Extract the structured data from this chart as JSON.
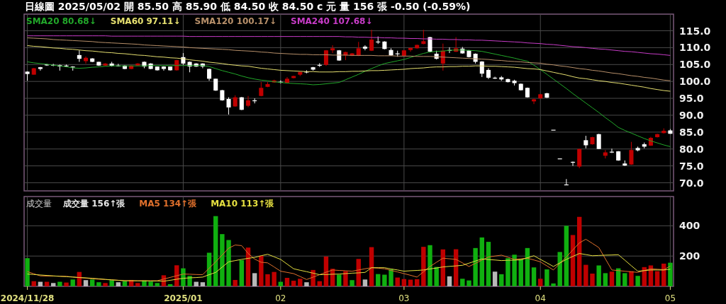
{
  "chart_data": [
    {
      "type": "candlestick",
      "title": "日線圖 2025/05/02 開 85.50 高 85.90 低 84.50 收 84.50 c 元 量 156 張 -0.50 (-0.59%)",
      "tick_labels": "y",
      "grid": true,
      "legend": "top left",
      "categories": [
        "2024/11/28",
        null,
        null,
        null,
        null,
        null,
        null,
        null,
        null,
        null,
        null,
        null,
        null,
        null,
        null,
        null,
        null,
        null,
        null,
        null,
        null,
        null,
        null,
        null,
        "2025/01",
        null,
        null,
        null,
        null,
        null,
        null,
        null,
        null,
        null,
        null,
        null,
        null,
        null,
        null,
        "02",
        null,
        null,
        null,
        null,
        null,
        null,
        null,
        null,
        null,
        null,
        null,
        null,
        null,
        null,
        null,
        null,
        null,
        null,
        "03",
        null,
        null,
        null,
        null,
        null,
        null,
        null,
        null,
        null,
        null,
        null,
        null,
        null,
        null,
        null,
        null,
        null,
        null,
        null,
        null,
        "04",
        null,
        null,
        null,
        null,
        null,
        null,
        null,
        null,
        null,
        null,
        null,
        null,
        null,
        null,
        null,
        null,
        null,
        null,
        null,
        "05"
      ],
      "ylim": [
        67.6,
        119.5
      ],
      "yticks": [
        {
          "value": 70,
          "label": "70.0"
        },
        {
          "value": 75,
          "label": "75.0"
        },
        {
          "value": 80,
          "label": "80.0"
        },
        {
          "value": 85,
          "label": "85.0"
        },
        {
          "value": 90,
          "label": "90.0"
        },
        {
          "value": 95,
          "label": "95.0"
        },
        {
          "value": 100,
          "label": "100.0"
        },
        {
          "value": 105,
          "label": "105.0"
        },
        {
          "value": 110,
          "label": "110.0"
        },
        {
          "value": 115,
          "label": "115.0"
        }
      ],
      "ohlc": [
        [
          102.9,
          103.0,
          100.2,
          102.2
        ],
        [
          102.0,
          104.0,
          102.0,
          103.9
        ],
        [
          104.2,
          104.3,
          103.2,
          103.7
        ],
        [
          105.0,
          105.2,
          104.6,
          104.9
        ],
        [
          104.9,
          105.2,
          104.5,
          104.9
        ],
        [
          104.8,
          105.0,
          103.2,
          104.4
        ],
        [
          104.7,
          105.0,
          104.3,
          104.7
        ],
        [
          104.4,
          104.5,
          103.2,
          104.3
        ],
        [
          107.8,
          109.2,
          105.8,
          106.7
        ],
        [
          106.0,
          107.4,
          105.3,
          107.0
        ],
        [
          106.8,
          106.9,
          105.7,
          105.8
        ],
        [
          105.8,
          105.8,
          104.6,
          104.7
        ],
        [
          104.7,
          105.4,
          104.6,
          105.3
        ],
        [
          105.3,
          105.8,
          104.4,
          104.6
        ],
        [
          104.7,
          105.2,
          104.4,
          104.7
        ],
        [
          104.7,
          104.8,
          103.6,
          103.7
        ],
        [
          103.7,
          104.8,
          103.6,
          104.7
        ],
        [
          104.7,
          105.4,
          104.6,
          105.3
        ],
        [
          105.8,
          105.9,
          103.9,
          104.4
        ],
        [
          105.3,
          105.4,
          103.6,
          103.7
        ],
        [
          104.4,
          104.4,
          103.2,
          103.3
        ],
        [
          104.4,
          104.5,
          103.2,
          103.7
        ],
        [
          104.4,
          104.4,
          103.2,
          103.3
        ],
        [
          103.3,
          106.4,
          103.2,
          106.3
        ],
        [
          107.2,
          108.4,
          104.9,
          105.3
        ],
        [
          105.8,
          105.9,
          102.7,
          104.4
        ],
        [
          105.3,
          105.4,
          104.3,
          104.4
        ],
        [
          105.3,
          105.4,
          103.9,
          104.4
        ],
        [
          103.7,
          103.8,
          100.2,
          100.8
        ],
        [
          100.8,
          100.8,
          97.2,
          97.3
        ],
        [
          97.4,
          97.5,
          94.3,
          94.4
        ],
        [
          94.8,
          95.3,
          90.2,
          92.3
        ],
        [
          92.6,
          95.9,
          92.5,
          95.3
        ],
        [
          95.3,
          95.4,
          91.5,
          91.6
        ],
        [
          92.8,
          95.7,
          92.4,
          94.4
        ],
        [
          94.4,
          95.0,
          93.5,
          94.3
        ],
        [
          95.7,
          99.8,
          95.6,
          98.1
        ],
        [
          98.4,
          99.8,
          98.3,
          99.2
        ],
        [
          99.7,
          100.5,
          99.6,
          100.3
        ],
        [
          99.9,
          100.3,
          99.4,
          99.9
        ],
        [
          99.6,
          101.3,
          99.5,
          100.8
        ],
        [
          101.0,
          101.7,
          100.9,
          101.6
        ],
        [
          102.0,
          102.9,
          101.6,
          102.8
        ],
        [
          102.9,
          103.3,
          102.4,
          102.8
        ],
        [
          104.2,
          104.3,
          103.2,
          103.5
        ],
        [
          104.9,
          105.4,
          104.3,
          104.8
        ],
        [
          104.9,
          109.3,
          104.6,
          109.2
        ],
        [
          109.2,
          110.7,
          108.4,
          109.8
        ],
        [
          109.2,
          109.3,
          106.1,
          106.2
        ],
        [
          107.7,
          108.8,
          106.3,
          108.7
        ],
        [
          107.6,
          108.4,
          107.5,
          108.3
        ],
        [
          107.6,
          111.7,
          107.5,
          109.8
        ],
        [
          110.3,
          110.7,
          109.2,
          109.7
        ],
        [
          109.1,
          115.3,
          109.0,
          112.4
        ],
        [
          111.8,
          113.3,
          111.1,
          111.8
        ],
        [
          111.8,
          111.9,
          109.5,
          109.6
        ],
        [
          109.3,
          109.8,
          107.6,
          107.7
        ],
        [
          108.3,
          109.1,
          107.3,
          108.2
        ],
        [
          107.6,
          109.3,
          107.5,
          109.2
        ],
        [
          109.3,
          110.0,
          108.8,
          109.9
        ],
        [
          109.8,
          110.9,
          109.7,
          110.8
        ],
        [
          111.1,
          115.3,
          111.0,
          111.9
        ],
        [
          113.1,
          113.2,
          108.6,
          108.8
        ],
        [
          108.2,
          109.1,
          106.5,
          106.7
        ],
        [
          105.3,
          111.2,
          103.2,
          109.1
        ],
        [
          109.3,
          110.1,
          108.4,
          109.3
        ],
        [
          108.8,
          113.1,
          108.7,
          109.8
        ],
        [
          109.7,
          110.2,
          108.2,
          108.3
        ],
        [
          109.2,
          109.3,
          107.1,
          107.2
        ],
        [
          108.2,
          108.3,
          105.3,
          105.8
        ],
        [
          105.9,
          106.0,
          101.3,
          102.3
        ],
        [
          103.4,
          103.9,
          100.7,
          101.1
        ],
        [
          101.1,
          101.4,
          100.7,
          101.0
        ],
        [
          101.2,
          101.6,
          100.2,
          100.6
        ],
        [
          100.7,
          100.8,
          99.7,
          99.8
        ],
        [
          100.2,
          100.5,
          98.8,
          99.5
        ],
        [
          99.3,
          99.4,
          97.3,
          97.4
        ],
        [
          98.1,
          98.2,
          95.2,
          95.3
        ],
        [
          94.1,
          94.9,
          93.3,
          94.7
        ],
        [
          95.0,
          96.3,
          94.9,
          96.2
        ],
        [
          96.5,
          96.6,
          95.1,
          95.2
        ],
        [
          85.7,
          85.7,
          85.7,
          85.7
        ],
        [
          77.2,
          77.2,
          77.2,
          77.2
        ],
        [
          69.5,
          71.1,
          69.5,
          69.5
        ],
        [
          76.2,
          76.3,
          75.0,
          76.2
        ],
        [
          74.8,
          80.1,
          74.3,
          80.0
        ],
        [
          82.6,
          83.9,
          80.2,
          81.1
        ],
        [
          81.4,
          83.6,
          81.3,
          83.5
        ],
        [
          84.4,
          84.5,
          80.0,
          80.0
        ],
        [
          78.0,
          79.7,
          77.2,
          79.0
        ],
        [
          79.2,
          80.1,
          78.8,
          79.1
        ],
        [
          79.3,
          79.4,
          76.5,
          76.6
        ],
        [
          75.7,
          76.6,
          75.0,
          75.1
        ],
        [
          75.4,
          82.1,
          75.3,
          79.7
        ],
        [
          80.3,
          80.7,
          79.3,
          79.6
        ],
        [
          81.4,
          81.9,
          80.2,
          80.7
        ],
        [
          81.0,
          83.6,
          80.9,
          83.3
        ],
        [
          83.5,
          84.5,
          83.4,
          84.4
        ],
        [
          84.7,
          86.1,
          84.6,
          85.4
        ],
        [
          85.5,
          85.9,
          84.5,
          84.5
        ]
      ],
      "colors": [
        "#ffffff",
        "#c00000",
        "#ffffff",
        "#ffffff",
        "#ffffff",
        "#ffffff",
        "#ffffff",
        "#ffffff",
        "#ffffff",
        "#c00000",
        "#ffffff",
        "#ffffff",
        "#c00000",
        "#ffffff",
        "#ffffff",
        "#ffffff",
        "#c00000",
        "#c00000",
        "#ffffff",
        "#ffffff",
        "#ffffff",
        "#ffffff",
        "#ffffff",
        "#c00000",
        "#ffffff",
        "#ffffff",
        "#ffffff",
        "#ffffff",
        "#ffffff",
        "#ffffff",
        "#ffffff",
        "#ffffff",
        "#c00000",
        "#ffffff",
        "#c00000",
        "#ffffff",
        "#c00000",
        "#c00000",
        "#c00000",
        "#ffffff",
        "#c00000",
        "#c00000",
        "#c00000",
        "#ffffff",
        "#ffffff",
        "#ffffff",
        "#c00000",
        "#c00000",
        "#ffffff",
        "#c00000",
        "#c00000",
        "#c00000",
        "#ffffff",
        "#c00000",
        "#ffffff",
        "#ffffff",
        "#ffffff",
        "#ffffff",
        "#c00000",
        "#c00000",
        "#c00000",
        "#c00000",
        "#ffffff",
        "#ffffff",
        "#c00000",
        "#ffffff",
        "#c00000",
        "#ffffff",
        "#ffffff",
        "#ffffff",
        "#ffffff",
        "#ffffff",
        "#ffffff",
        "#ffffff",
        "#ffffff",
        "#ffffff",
        "#ffffff",
        "#ffffff",
        "#c00000",
        "#c00000",
        "#ffffff",
        "#ffffff",
        "#ffffff",
        "#ffffff",
        "#ffffff",
        "#c00000",
        "#ffffff",
        "#c00000",
        "#ffffff",
        "#c00000",
        "#ffffff",
        "#ffffff",
        "#ffffff",
        "#c00000",
        "#ffffff",
        "#ffffff",
        "#c00000",
        "#c00000",
        "#c00000",
        "#ffffff"
      ],
      "series": [
        {
          "name": "SMA20 80.68↓",
          "type": "line",
          "color": "#22a82a",
          "values": [
            105.8,
            105.5,
            105.3,
            105.1,
            104.8,
            104.6,
            104.3,
            104.0,
            103.9,
            104.0,
            104.2,
            104.3,
            104.5,
            104.6,
            104.6,
            104.6,
            104.6,
            104.6,
            104.6,
            104.7,
            104.7,
            104.7,
            104.7,
            104.7,
            104.7,
            104.7,
            104.7,
            104.7,
            104.4,
            103.8,
            103.2,
            102.7,
            102.2,
            101.6,
            101.1,
            100.7,
            100.4,
            100.2,
            99.9,
            99.7,
            99.5,
            99.4,
            99.3,
            99.2,
            99.0,
            99.1,
            99.3,
            99.5,
            99.7,
            100.5,
            101.3,
            102.1,
            103.0,
            103.8,
            104.6,
            105.3,
            105.7,
            106.1,
            106.5,
            107.1,
            107.7,
            108.3,
            108.7,
            108.9,
            109.0,
            109.2,
            109.3,
            109.3,
            109.2,
            109.1,
            108.9,
            108.5,
            108.1,
            107.7,
            107.3,
            106.9,
            106.4,
            106.0,
            104.8,
            103.5,
            102.1,
            100.7,
            99.3,
            97.9,
            96.4,
            95.0,
            93.6,
            92.2,
            90.8,
            89.3,
            87.9,
            86.4,
            85.5,
            84.7,
            83.9,
            83.1,
            82.4,
            81.8,
            81.2,
            80.7
          ]
        },
        {
          "name": "SMA60 97.11↓",
          "type": "line",
          "color": "#e6e070",
          "values": [
            110.6,
            110.4,
            110.3,
            110.1,
            109.9,
            109.8,
            109.6,
            109.5,
            109.3,
            109.1,
            109.0,
            108.8,
            108.6,
            108.5,
            108.3,
            108.2,
            108.0,
            107.8,
            107.7,
            107.5,
            107.3,
            107.2,
            107.0,
            106.9,
            106.7,
            106.4,
            106.2,
            106.0,
            105.7,
            105.5,
            105.3,
            105.0,
            104.8,
            104.6,
            104.5,
            104.2,
            103.9,
            103.7,
            103.5,
            103.3,
            103.2,
            103.1,
            103.0,
            102.9,
            102.9,
            102.8,
            102.8,
            102.8,
            102.9,
            102.9,
            103.0,
            103.0,
            103.1,
            103.2,
            103.2,
            103.3,
            103.4,
            103.5,
            103.6,
            103.8,
            103.9,
            104.0,
            104.2,
            104.3,
            104.3,
            104.4,
            104.4,
            104.5,
            104.5,
            104.6,
            104.6,
            104.5,
            104.5,
            104.4,
            104.3,
            104.2,
            104.0,
            103.8,
            103.7,
            103.5,
            103.1,
            102.7,
            102.3,
            101.9,
            101.4,
            101.0,
            100.8,
            100.5,
            100.2,
            100.0,
            99.7,
            99.5,
            99.2,
            98.9,
            98.6,
            98.3,
            97.9,
            97.6,
            97.3,
            97.1
          ]
        },
        {
          "name": "SMA120 100.17↓",
          "type": "line",
          "color": "#b8906a",
          "values": [
            112.9,
            112.8,
            112.7,
            112.6,
            112.4,
            112.3,
            112.2,
            112.1,
            112.0,
            111.9,
            111.8,
            111.6,
            111.5,
            111.4,
            111.3,
            111.2,
            111.1,
            111.0,
            110.8,
            110.7,
            110.6,
            110.5,
            110.4,
            110.3,
            110.2,
            110.0,
            109.9,
            109.8,
            109.7,
            109.6,
            109.5,
            109.4,
            109.2,
            109.1,
            109.0,
            108.9,
            108.7,
            108.6,
            108.4,
            108.3,
            108.2,
            108.1,
            108.0,
            108.0,
            107.9,
            107.9,
            107.9,
            107.8,
            107.8,
            107.8,
            107.7,
            107.7,
            107.7,
            107.7,
            107.6,
            107.6,
            107.6,
            107.5,
            107.5,
            107.5,
            107.4,
            107.4,
            107.4,
            107.3,
            107.2,
            107.1,
            107.0,
            106.9,
            106.8,
            106.7,
            106.6,
            106.5,
            106.3,
            106.2,
            106.0,
            105.9,
            105.8,
            105.6,
            105.5,
            105.4,
            105.1,
            104.9,
            104.6,
            104.4,
            104.1,
            103.8,
            103.6,
            103.3,
            103.1,
            102.8,
            102.5,
            102.3,
            102.0,
            101.7,
            101.5,
            101.2,
            101.0,
            100.7,
            100.4,
            100.2
          ]
        },
        {
          "name": "SMA240 107.68↓",
          "type": "line",
          "color": "#c83cc8",
          "values": [
            113.5,
            113.5,
            113.5,
            113.5,
            113.5,
            113.5,
            113.5,
            113.5,
            113.5,
            113.5,
            113.5,
            113.5,
            113.5,
            113.4,
            113.4,
            113.4,
            113.4,
            113.4,
            113.4,
            113.4,
            113.4,
            113.4,
            113.4,
            113.4,
            113.4,
            113.3,
            113.3,
            113.3,
            113.3,
            113.3,
            113.3,
            113.3,
            113.3,
            113.3,
            113.3,
            113.3,
            113.3,
            113.3,
            113.3,
            113.3,
            113.3,
            113.3,
            113.3,
            113.3,
            113.3,
            113.3,
            113.3,
            113.3,
            113.3,
            113.2,
            113.2,
            113.1,
            113.1,
            113.0,
            113.0,
            112.9,
            112.9,
            112.8,
            112.8,
            112.7,
            112.7,
            112.6,
            112.6,
            112.5,
            112.5,
            112.4,
            112.4,
            112.3,
            112.3,
            112.2,
            112.2,
            112.1,
            112.0,
            111.9,
            111.8,
            111.7,
            111.6,
            111.4,
            111.3,
            111.2,
            111.0,
            110.9,
            110.7,
            110.5,
            110.3,
            110.2,
            110.0,
            109.8,
            109.6,
            109.5,
            109.3,
            109.1,
            108.9,
            108.8,
            108.6,
            108.4,
            108.2,
            108.1,
            107.9,
            107.7
          ]
        }
      ]
    },
    {
      "type": "bar",
      "title": "成交量",
      "annotations": [
        "成交量 156↑張"
      ],
      "grid": true,
      "legend": "top left",
      "categories": [
        "2024/11/28",
        null,
        null,
        null,
        null,
        null,
        null,
        null,
        null,
        null,
        null,
        null,
        null,
        null,
        null,
        null,
        null,
        null,
        null,
        null,
        null,
        null,
        null,
        null,
        "2025/01",
        null,
        null,
        null,
        null,
        null,
        null,
        null,
        null,
        null,
        null,
        null,
        null,
        null,
        null,
        "02",
        null,
        null,
        null,
        null,
        null,
        null,
        null,
        null,
        null,
        null,
        null,
        null,
        null,
        null,
        null,
        null,
        null,
        null,
        "03",
        null,
        null,
        null,
        null,
        null,
        null,
        null,
        null,
        null,
        null,
        null,
        null,
        null,
        null,
        null,
        null,
        null,
        null,
        null,
        null,
        "04",
        null,
        null,
        null,
        null,
        null,
        null,
        null,
        null,
        null,
        null,
        null,
        null,
        null,
        null,
        null,
        null,
        null,
        null,
        null,
        "05"
      ],
      "ylim": [
        0,
        584
      ],
      "yticks": [
        200,
        400
      ],
      "series": [
        {
          "type": "bar",
          "values": [
            186,
            34,
            30,
            30,
            22,
            30,
            25,
            45,
            95,
            41,
            45,
            27,
            22,
            41,
            27,
            34,
            42,
            22,
            39,
            31,
            22,
            73,
            14,
            139,
            119,
            69,
            30,
            27,
            222,
            464,
            345,
            306,
            42,
            173,
            256,
            87,
            202,
            80,
            95,
            30,
            56,
            37,
            50,
            27,
            108,
            34,
            197,
            116,
            77,
            100,
            41,
            181,
            45,
            259,
            81,
            77,
            112,
            58,
            48,
            44,
            47,
            261,
            272,
            128,
            244,
            66,
            245,
            50,
            39,
            253,
            323,
            294,
            97,
            80,
            186,
            209,
            181,
            253,
            125,
            50,
            112,
            19,
            227,
            400,
            339,
            459,
            142,
            84,
            138,
            87,
            97,
            119,
            87,
            100,
            69,
            127,
            138,
            100,
            150,
            156
          ],
          "colors": [
            "#10b010",
            "#c00000",
            "#b8b8b8",
            "#c00000",
            "#b8b8b8",
            "#10b010",
            "#c00000",
            "#10b010",
            "#c00000",
            "#b8b8b8",
            "#10b010",
            "#10b010",
            "#c00000",
            "#10b010",
            "#b8b8b8",
            "#10b010",
            "#c00000",
            "#c00000",
            "#10b010",
            "#10b010",
            "#10b010",
            "#c00000",
            "#10b010",
            "#c00000",
            "#10b010",
            "#10b010",
            "#b8b8b8",
            "#b8b8b8",
            "#10b010",
            "#10b010",
            "#10b010",
            "#10b010",
            "#c00000",
            "#10b010",
            "#c00000",
            "#b8b8b8",
            "#c00000",
            "#c00000",
            "#c00000",
            "#10b010",
            "#c00000",
            "#c00000",
            "#c00000",
            "#b8b8b8",
            "#c00000",
            "#c00000",
            "#c00000",
            "#c00000",
            "#10b010",
            "#c00000",
            "#10b010",
            "#c00000",
            "#b8b8b8",
            "#c00000",
            "#10b010",
            "#10b010",
            "#10b010",
            "#c00000",
            "#c00000",
            "#c00000",
            "#c00000",
            "#c00000",
            "#10b010",
            "#10b010",
            "#c00000",
            "#b8b8b8",
            "#c00000",
            "#10b010",
            "#10b010",
            "#10b010",
            "#10b010",
            "#10b010",
            "#b8b8b8",
            "#10b010",
            "#10b010",
            "#10b010",
            "#10b010",
            "#10b010",
            "#10b010",
            "#c00000",
            "#10b010",
            "#10b010",
            "#10b010",
            "#10b010",
            "#c00000",
            "#c00000",
            "#c00000",
            "#c00000",
            "#10b010",
            "#10b010",
            "#c00000",
            "#10b010",
            "#10b010",
            "#c00000",
            "#10b010",
            "#c00000",
            "#c00000",
            "#c00000",
            "#c00000",
            "#10b010"
          ]
        },
        {
          "name": "MA5 134↑張",
          "type": "line",
          "color": "#e0702c",
          "values": [
            97,
            83,
            69,
            68,
            68,
            67,
            66,
            62,
            58,
            54,
            50,
            47,
            45,
            42,
            40,
            37,
            37,
            37,
            37,
            37,
            37,
            48,
            59,
            70,
            81,
            80,
            78,
            77,
            120,
            162,
            207,
            252,
            273,
            269,
            217,
            180,
            159,
            155,
            128,
            100,
            92,
            84,
            65,
            45,
            61,
            77,
            93,
            108,
            105,
            103,
            100,
            108,
            116,
            123,
            120,
            116,
            105,
            95,
            84,
            73,
            61,
            96,
            131,
            159,
            186,
            182,
            178,
            155,
            131,
            152,
            173,
            194,
            200,
            206,
            192,
            178,
            182,
            186,
            174,
            162,
            135,
            108,
            151,
            194,
            241,
            287,
            311,
            284,
            256,
            182,
            108,
            104,
            100,
            96,
            92,
            104,
            116,
            113,
            110,
            134
          ]
        },
        {
          "name": "MA10 113↑張",
          "type": "line",
          "color": "#e6e040",
          "values": [
            81,
            78,
            75,
            72,
            69,
            66,
            64,
            61,
            58,
            56,
            53,
            50,
            46,
            43,
            40,
            37,
            37,
            36,
            36,
            35,
            35,
            34,
            40,
            47,
            53,
            56,
            58,
            61,
            77,
            92,
            127,
            162,
            170,
            178,
            185,
            191,
            202,
            212,
            195,
            178,
            147,
            116,
            106,
            97,
            87,
            77,
            78,
            80,
            81,
            84,
            87,
            89,
            92,
            123,
            123,
            123,
            115,
            108,
            100,
            103,
            105,
            108,
            115,
            121,
            128,
            132,
            135,
            139,
            153,
            167,
            181,
            177,
            174,
            170,
            172,
            173,
            175,
            189,
            202,
            178,
            155,
            131,
            155,
            178,
            198,
            217,
            210,
            202,
            204,
            206,
            207,
            209,
            173,
            136,
            100,
            104,
            108,
            108,
            108,
            113
          ]
        }
      ]
    }
  ]
}
